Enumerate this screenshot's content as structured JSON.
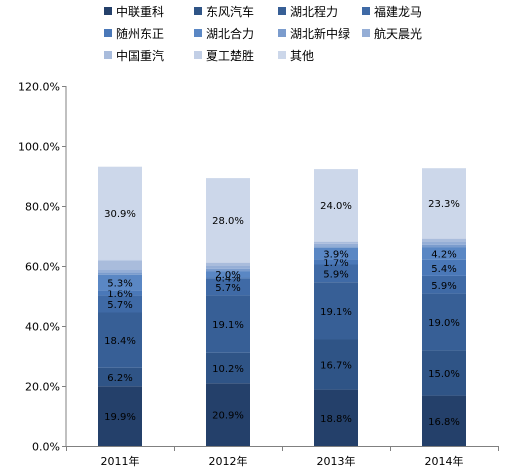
{
  "chart_data": {
    "type": "bar",
    "stacked": true,
    "categories": [
      "2011年",
      "2012年",
      "2013年",
      "2014年"
    ],
    "ylim": [
      0,
      120
    ],
    "yticks": [
      0,
      20,
      40,
      60,
      80,
      100,
      120
    ],
    "ytick_labels": [
      "0.0%",
      "20.0%",
      "40.0%",
      "60.0%",
      "80.0%",
      "100.0%",
      "120.0%"
    ],
    "legend_position": "top",
    "series": [
      {
        "name": "中联重科",
        "color": "#24406a",
        "values": [
          19.9,
          20.9,
          18.8,
          16.8
        ],
        "labels": [
          "19.9%",
          "20.9%",
          "18.8%",
          "16.8%"
        ]
      },
      {
        "name": "东风汽车",
        "color": "#2f5486",
        "values": [
          6.2,
          10.2,
          16.7,
          15.0
        ],
        "labels": [
          "6.2%",
          "10.2%",
          "16.7%",
          "15.0%"
        ]
      },
      {
        "name": "湖北程力",
        "color": "#375f96",
        "values": [
          18.4,
          19.1,
          19.1,
          19.0
        ],
        "labels": [
          "18.4%",
          "19.1%",
          "19.1%",
          "19.0%"
        ]
      },
      {
        "name": "福建龙马",
        "color": "#3f6aa6",
        "values": [
          5.7,
          5.7,
          5.9,
          5.9
        ],
        "labels": [
          "5.7%",
          "5.7%",
          "5.9%",
          "5.9%"
        ]
      },
      {
        "name": "随州东正",
        "color": "#4a78b8",
        "values": [
          1.6,
          0.4,
          1.7,
          5.4
        ],
        "labels": [
          "1.6%",
          "0.4%",
          "1.7%",
          "5.4%"
        ]
      },
      {
        "name": "湖北合力",
        "color": "#5a87c4",
        "values": [
          5.3,
          2.0,
          3.9,
          4.2
        ],
        "labels": [
          "5.3%",
          "2.0%",
          "3.9%",
          "4.2%"
        ]
      },
      {
        "name": "湖北新中绿",
        "color": "#7b9ccd",
        "values": [
          0.8,
          0.8,
          0.5,
          0.8
        ],
        "labels": [
          "",
          "",
          "",
          ""
        ]
      },
      {
        "name": "航天晨光",
        "color": "#95aed6",
        "values": [
          1.0,
          0.9,
          0.8,
          0.9
        ],
        "labels": [
          "",
          "",
          "",
          ""
        ]
      },
      {
        "name": "中国重汽",
        "color": "#a9bcdc",
        "values": [
          3.0,
          1.0,
          0.6,
          1.0
        ],
        "labels": [
          "",
          "",
          "",
          ""
        ]
      },
      {
        "name": "夏工楚胜",
        "color": "#c2cfe6",
        "values": [
          0.3,
          0.3,
          0.3,
          0.3
        ],
        "labels": [
          "",
          "",
          "",
          ""
        ]
      },
      {
        "name": "其他",
        "color": "#ccd7ea",
        "values": [
          30.9,
          28.0,
          24.0,
          23.3
        ],
        "labels": [
          "30.9%",
          "28.0%",
          "24.0%",
          "23.3%"
        ]
      }
    ]
  }
}
